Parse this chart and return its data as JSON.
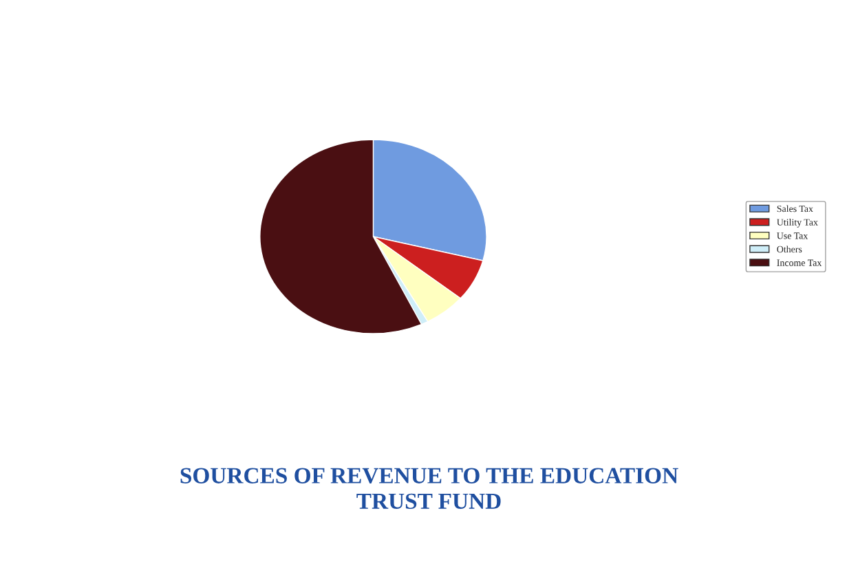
{
  "chart_data": {
    "type": "pie",
    "title": "SOURCES OF REVENUE TO THE EDUCATION\nTRUST FUND",
    "categories": [
      "Sales Tax",
      "Utility Tax",
      "Use Tax",
      "Others",
      "Income Tax"
    ],
    "values": [
      29,
      7,
      6,
      1,
      57
    ],
    "colors": [
      "#6f9be0",
      "#cc1f1f",
      "#ffffc0",
      "#cfeef8",
      "#4a0f12"
    ],
    "legend": "right"
  }
}
